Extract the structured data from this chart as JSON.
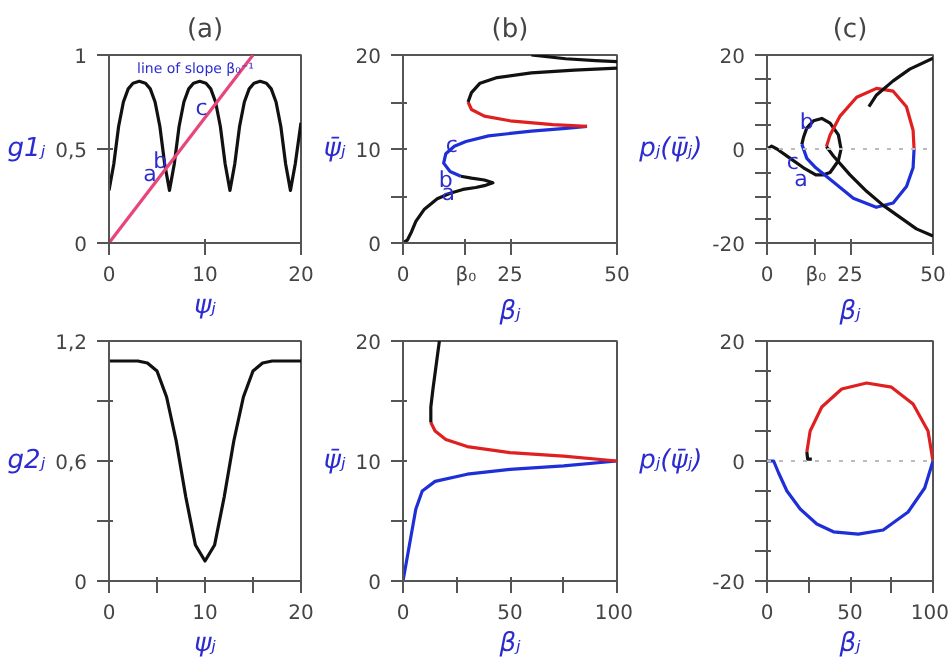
{
  "chart_data": [
    {
      "type": "line",
      "title": "(a)",
      "xlabel": "ψⱼ",
      "ylabel": "g1ⱼ",
      "xlim": [
        0,
        20
      ],
      "ylim": [
        0,
        1
      ],
      "xticks": [
        0,
        10,
        20
      ],
      "yticks": [
        0,
        {
          "value": 0.5,
          "label": "0,5"
        },
        1
      ],
      "series": [
        {
          "color": "#111111",
          "x": [
            0,
            0.5,
            1,
            1.5,
            2,
            2.5,
            3.15,
            3.8,
            4.3,
            4.8,
            5.3,
            5.8,
            6.3,
            6.8,
            7.3,
            7.8,
            8.3,
            8.8,
            9.45,
            10.1,
            10.6,
            11.1,
            11.6,
            12.1,
            12.6,
            13.1,
            13.6,
            14.1,
            14.6,
            15.1,
            15.75,
            16.4,
            16.9,
            17.4,
            17.9,
            18.4,
            18.9,
            19.4,
            20
          ],
          "values": [
            0.28,
            0.42,
            0.62,
            0.75,
            0.82,
            0.85,
            0.86,
            0.85,
            0.82,
            0.75,
            0.62,
            0.42,
            0.28,
            0.42,
            0.62,
            0.75,
            0.82,
            0.85,
            0.86,
            0.85,
            0.82,
            0.75,
            0.62,
            0.42,
            0.28,
            0.42,
            0.62,
            0.75,
            0.82,
            0.85,
            0.86,
            0.85,
            0.82,
            0.75,
            0.62,
            0.42,
            0.28,
            0.42,
            0.64
          ]
        },
        {
          "color": "#e8457a",
          "x": [
            0,
            15
          ],
          "values": [
            0,
            1
          ]
        }
      ],
      "annotations": [
        {
          "text": "a",
          "x": 5.8,
          "y": 0.39
        },
        {
          "text": "b",
          "x": 6.9,
          "y": 0.46
        },
        {
          "text": "c",
          "x": 11.1,
          "y": 0.74
        },
        "line of slope β₀⁻¹"
      ]
    },
    {
      "type": "line",
      "title": "(b)",
      "xlabel": "βⱼ",
      "ylabel": "ψ̄ⱼ",
      "xlim": [
        0,
        50
      ],
      "ylim": [
        0,
        20
      ],
      "xticks": [
        0,
        {
          "value": 14.7,
          "label": "β₀"
        },
        25,
        50
      ],
      "yticks": [
        0,
        {
          "value": 5,
          "label": null
        },
        10,
        {
          "value": 15,
          "label": null
        },
        20
      ],
      "series": [
        {
          "color": "#111111",
          "x": [
            0,
            1,
            2,
            3,
            5,
            8,
            11,
            14,
            17,
            19,
            21,
            19,
            16,
            13.5
          ],
          "values": [
            0,
            0.3,
            1.2,
            2.3,
            3.6,
            4.7,
            5.3,
            5.7,
            5.9,
            6.1,
            6.4,
            6.7,
            6.9,
            7.1
          ]
        },
        {
          "color": "#1f2fd8",
          "x": [
            13.5,
            11,
            9.5,
            10,
            12,
            14.7,
            20,
            30,
            38,
            43
          ],
          "values": [
            7.1,
            7.6,
            8.5,
            9.5,
            10.3,
            10.8,
            11.4,
            11.9,
            12.2,
            12.4
          ]
        },
        {
          "color": "#e02020",
          "x": [
            43,
            35,
            25,
            19,
            16,
            15.2
          ],
          "values": [
            12.4,
            12.6,
            13,
            13.5,
            14.2,
            15
          ]
        },
        {
          "color": "#111111",
          "x": [
            15.2,
            16,
            18,
            22,
            30,
            40,
            50
          ],
          "values": [
            15,
            16,
            17,
            17.6,
            18.1,
            18.4,
            18.6
          ]
        },
        {
          "color": "#111111",
          "x": [
            30,
            38,
            45,
            50
          ],
          "values": [
            20,
            19.6,
            19.4,
            19.3
          ]
        }
      ],
      "annotations": [
        {
          "text": "a",
          "x": 14,
          "y": 5.7
        },
        {
          "text": "b",
          "x": 13.5,
          "y": 7.1
        },
        {
          "text": "c",
          "x": 14.7,
          "y": 10.8
        }
      ]
    },
    {
      "type": "line",
      "title": "(c)",
      "xlabel": "βⱼ",
      "ylabel": "pⱼ(ψ̄ⱼ)",
      "xlim": [
        0,
        50
      ],
      "ylim": [
        -20,
        20
      ],
      "xticks": [
        0,
        {
          "value": 14.7,
          "label": "β₀"
        },
        25,
        50
      ],
      "yticks": [
        -20,
        {
          "value": -15,
          "label": null
        },
        {
          "value": -10,
          "label": null
        },
        {
          "value": -5,
          "label": null
        },
        0,
        {
          "value": 5,
          "label": null
        },
        {
          "value": 10,
          "label": null
        },
        {
          "value": 15,
          "label": null
        },
        20
      ],
      "ref_lines": [
        {
          "axis": "y",
          "value": 0,
          "color": "#bbbbbb",
          "line_style": "dotted"
        }
      ],
      "series": [
        {
          "color": "#111111",
          "x": [
            0,
            1.4,
            3,
            7,
            11,
            14.7,
            17,
            19,
            21.5,
            22.3,
            21.5,
            19,
            16.5,
            14,
            12,
            11,
            10.5
          ],
          "values": [
            0,
            0.6,
            0,
            -2,
            -4,
            -5.5,
            -5.5,
            -5,
            -2.5,
            0,
            3,
            5.5,
            6.5,
            6,
            4.5,
            2.5,
            1
          ]
        },
        {
          "color": "#1f2fd8",
          "x": [
            10.5,
            12,
            14.7,
            20,
            26,
            32.9,
            38,
            42,
            44,
            44.3
          ],
          "values": [
            1,
            -2,
            -4,
            -7,
            -10.5,
            -12.4,
            -11.5,
            -8,
            -4,
            0
          ]
        },
        {
          "color": "#e02020",
          "x": [
            44.3,
            44,
            42,
            38,
            33,
            27,
            22,
            19,
            17.9
          ],
          "values": [
            0,
            4,
            9,
            12.3,
            12.9,
            11,
            7,
            3,
            0.5
          ]
        },
        {
          "color": "#111111",
          "x": [
            17.9,
            20,
            25,
            30,
            35,
            40,
            45,
            50
          ],
          "values": [
            0.5,
            -1.5,
            -5.5,
            -9,
            -12,
            -14.5,
            -17,
            -18.5
          ]
        },
        {
          "color": "#111111",
          "x": [
            30.7,
            33,
            38,
            43,
            50
          ],
          "values": [
            9,
            11.5,
            14.5,
            17,
            19.3
          ]
        }
      ],
      "annotations": [
        {
          "text": "a",
          "x": 14.7,
          "y": -5.5
        },
        {
          "text": "b",
          "x": 16.5,
          "y": 6.5
        },
        {
          "text": "c",
          "x": 12,
          "y": -2
        }
      ]
    },
    {
      "type": "line",
      "xlabel": "ψⱼ",
      "ylabel": "g2ⱼ",
      "xlim": [
        0,
        20
      ],
      "ylim": [
        0,
        1.2
      ],
      "xticks": [
        0,
        {
          "value": 5,
          "label": null
        },
        10,
        {
          "value": 15,
          "label": null
        },
        20
      ],
      "yticks": [
        0,
        {
          "value": 0.3,
          "label": null
        },
        {
          "value": 0.6,
          "label": "0,6"
        },
        {
          "value": 0.9,
          "label": null
        },
        {
          "value": 1.2,
          "label": "1,2"
        }
      ],
      "series": [
        {
          "color": "#111111",
          "x": [
            0,
            3,
            4,
            5,
            6,
            7,
            8,
            9,
            10,
            11,
            12,
            13,
            14,
            15,
            16,
            17,
            20
          ],
          "values": [
            1.1,
            1.1,
            1.09,
            1.05,
            0.92,
            0.7,
            0.42,
            0.18,
            0.1,
            0.18,
            0.42,
            0.7,
            0.92,
            1.05,
            1.09,
            1.1,
            1.1
          ]
        }
      ]
    },
    {
      "type": "line",
      "xlabel": "βⱼ",
      "ylabel": "ψ̄ⱼ",
      "xlim": [
        0,
        100
      ],
      "ylim": [
        0,
        20
      ],
      "xticks": [
        0,
        {
          "value": 25,
          "label": null
        },
        50,
        {
          "value": 75,
          "label": null
        },
        100
      ],
      "yticks": [
        0,
        {
          "value": 5,
          "label": null
        },
        10,
        {
          "value": 15,
          "label": null
        },
        20
      ],
      "series": [
        {
          "color": "#1f2fd8",
          "x": [
            0,
            2,
            4,
            6,
            9,
            15,
            30,
            50,
            75,
            100
          ],
          "values": [
            0,
            2,
            4,
            6,
            7.5,
            8.3,
            8.9,
            9.3,
            9.6,
            10
          ]
        },
        {
          "color": "#e02020",
          "x": [
            100,
            75,
            50,
            30,
            20,
            15,
            13
          ],
          "values": [
            10,
            10.4,
            10.7,
            11.2,
            11.8,
            12.5,
            13.2
          ]
        },
        {
          "color": "#111111",
          "x": [
            13,
            13,
            14,
            15.5,
            17
          ],
          "values": [
            13.2,
            14.5,
            16,
            18,
            20
          ]
        }
      ]
    },
    {
      "type": "line",
      "xlabel": "βⱼ",
      "ylabel": "pⱼ(ψ̄ⱼ)",
      "xlim": [
        0,
        100
      ],
      "ylim": [
        -20,
        20
      ],
      "xticks": [
        0,
        {
          "value": 25,
          "label": null
        },
        50,
        {
          "value": 75,
          "label": null
        },
        100
      ],
      "yticks": [
        -20,
        {
          "value": -15,
          "label": null
        },
        {
          "value": -10,
          "label": null
        },
        {
          "value": -5,
          "label": null
        },
        0,
        {
          "value": 5,
          "label": null
        },
        {
          "value": 10,
          "label": null
        },
        {
          "value": 15,
          "label": null
        },
        20
      ],
      "ref_lines": [
        {
          "axis": "y",
          "value": 0,
          "color": "#bbbbbb",
          "line_style": "dotted"
        }
      ],
      "series": [
        {
          "color": "#1f2fd8",
          "x": [
            0,
            4,
            7,
            12,
            20,
            30,
            40,
            55,
            70,
            85,
            95,
            100
          ],
          "values": [
            0,
            0,
            -2,
            -5,
            -8,
            -10.5,
            -11.8,
            -12.2,
            -11.5,
            -8.5,
            -4.5,
            0
          ]
        },
        {
          "color": "#e02020",
          "x": [
            100,
            97,
            88,
            75,
            60,
            45,
            33,
            26,
            24
          ],
          "values": [
            0,
            5,
            9.5,
            12.3,
            13,
            12,
            9,
            5,
            1.5
          ]
        },
        {
          "color": "#111111",
          "x": [
            24,
            24.5,
            27
          ],
          "values": [
            1.5,
            0.3,
            0.3
          ]
        }
      ]
    }
  ]
}
